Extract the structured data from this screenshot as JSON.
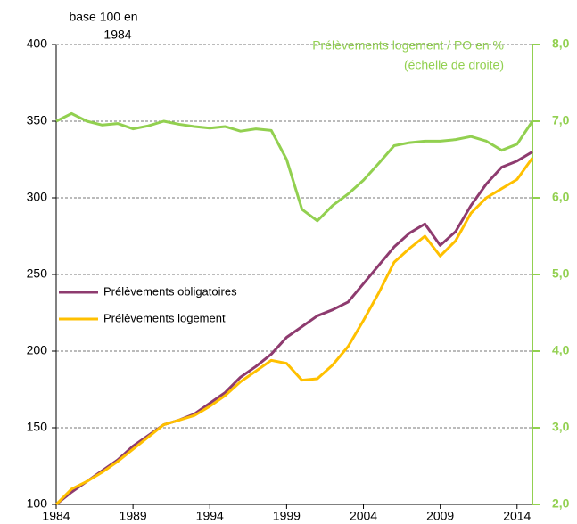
{
  "chart_data": {
    "type": "line",
    "y_label": [
      "base 100 en",
      "1984"
    ],
    "y2_label": [
      "Prélèvements logement / PO en %",
      "(échelle de droite)"
    ],
    "x": [
      1984,
      1985,
      1986,
      1987,
      1988,
      1989,
      1990,
      1991,
      1992,
      1993,
      1994,
      1995,
      1996,
      1997,
      1998,
      1999,
      2000,
      2001,
      2002,
      2003,
      2004,
      2005,
      2006,
      2007,
      2008,
      2009,
      2010,
      2011,
      2012,
      2013,
      2014,
      2015
    ],
    "xlim": [
      1984,
      2015
    ],
    "xticks": [
      1984,
      1989,
      1994,
      1999,
      2004,
      2009,
      2014
    ],
    "ylim": [
      100,
      400
    ],
    "yticks": [
      100,
      150,
      200,
      250,
      300,
      350,
      400
    ],
    "y2lim": [
      2,
      8
    ],
    "y2ticks": [
      {
        "value": 2,
        "label": "2,0"
      },
      {
        "value": 3,
        "label": "3,0"
      },
      {
        "value": 4,
        "label": "4,0"
      },
      {
        "value": 5,
        "label": "5,0"
      },
      {
        "value": 6,
        "label": "6,0"
      },
      {
        "value": 7,
        "label": "7,0"
      },
      {
        "value": 8,
        "label": "8,0"
      }
    ],
    "grid": true,
    "series": [
      {
        "name": "Prélèvements obligatoires",
        "color": "#8e3b6f",
        "values": [
          100,
          108,
          115,
          122,
          129,
          138,
          145,
          152,
          155,
          159,
          166,
          173,
          183,
          190,
          198,
          209,
          216,
          223,
          227,
          232,
          244,
          256,
          268,
          277,
          283,
          269,
          278,
          295,
          309,
          320,
          324,
          330
        ]
      },
      {
        "name": "Prélèvements logement",
        "color": "#ffc000",
        "values": [
          100,
          110,
          115,
          121,
          128,
          136,
          144,
          152,
          155,
          158,
          164,
          171,
          180,
          187,
          194,
          192,
          181,
          182,
          191,
          203,
          220,
          238,
          258,
          267,
          275,
          262,
          272,
          290,
          300,
          306,
          312,
          326
        ]
      },
      {
        "name": "Prélèvements logement / PO en %",
        "color": "#92d050",
        "axis": "y2",
        "legend": false,
        "values": [
          7.0,
          7.1,
          7.0,
          6.95,
          6.97,
          6.9,
          6.94,
          7.0,
          6.96,
          6.93,
          6.91,
          6.93,
          6.87,
          6.9,
          6.88,
          6.5,
          5.85,
          5.7,
          5.9,
          6.05,
          6.23,
          6.45,
          6.68,
          6.72,
          6.74,
          6.74,
          6.76,
          6.8,
          6.74,
          6.62,
          6.7,
          7.0
        ]
      }
    ]
  }
}
